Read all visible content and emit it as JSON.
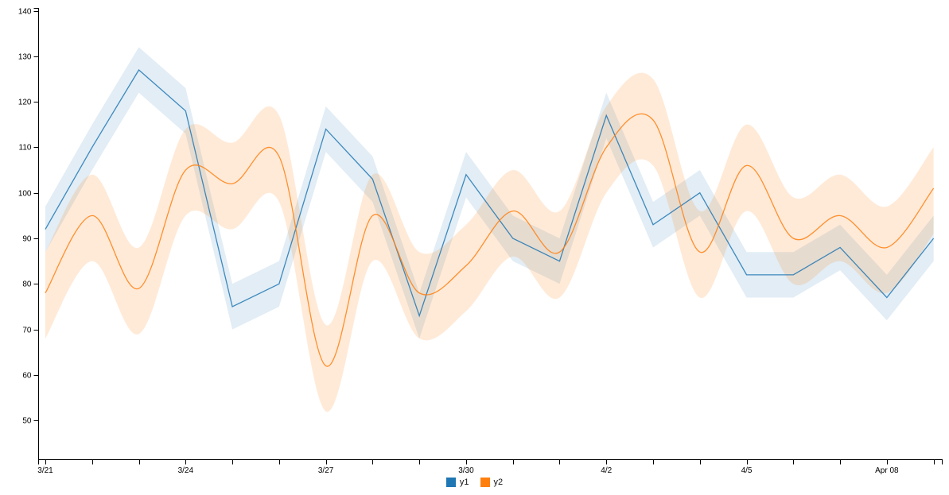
{
  "chart_data": {
    "type": "line",
    "title": "",
    "xlabel": "",
    "ylabel": "",
    "grid": false,
    "legend_position": "bottom-center",
    "x": [
      "3/21",
      "3/22",
      "3/23",
      "3/24",
      "3/25",
      "3/26",
      "3/27",
      "3/28",
      "3/29",
      "3/30",
      "3/31",
      "4/1",
      "4/2",
      "4/3",
      "4/4",
      "4/5",
      "4/6",
      "4/7",
      "4/8",
      "4/9"
    ],
    "x_axis": {
      "tick_every_point": true,
      "labeled_ticks": [
        {
          "index": 0,
          "label": "3/21"
        },
        {
          "index": 3,
          "label": "3/24"
        },
        {
          "index": 6,
          "label": "3/27"
        },
        {
          "index": 9,
          "label": "3/30"
        },
        {
          "index": 12,
          "label": "4/2"
        },
        {
          "index": 15,
          "label": "4/5"
        },
        {
          "index": 18,
          "label": "Apr 08"
        }
      ]
    },
    "y_axis": {
      "ticks": [
        50,
        60,
        70,
        80,
        90,
        100,
        110,
        120,
        130,
        140
      ],
      "tick_labels": [
        "50",
        "60",
        "70",
        "80",
        "90",
        "100",
        "110",
        "120",
        "130",
        "140"
      ]
    },
    "series": [
      {
        "name": "y1",
        "curve": "linear",
        "color": "#1f77b4",
        "band_color": "rgba(31,119,180,0.13)",
        "values": [
          92,
          110,
          127,
          118,
          75,
          80,
          114,
          103,
          73,
          104,
          90,
          85,
          117,
          93,
          100,
          82,
          82,
          88,
          77,
          90
        ],
        "band_lower": [
          87,
          105,
          122,
          113,
          70,
          75,
          109,
          98,
          68,
          99,
          85,
          80,
          112,
          88,
          95,
          77,
          77,
          83,
          72,
          85
        ],
        "band_upper": [
          97,
          115,
          132,
          123,
          80,
          85,
          119,
          108,
          78,
          109,
          95,
          90,
          122,
          98,
          105,
          87,
          87,
          93,
          82,
          95
        ]
      },
      {
        "name": "y2",
        "curve": "smooth",
        "color": "#ff7f0e",
        "band_color": "rgba(255,127,14,0.16)",
        "values": [
          78,
          95,
          79,
          105,
          102,
          108,
          62,
          95,
          78,
          84,
          96,
          87,
          110,
          116,
          87,
          106,
          90,
          95,
          88,
          101
        ],
        "band_lower": [
          68,
          85,
          69,
          95,
          92,
          98,
          52,
          85,
          68,
          74,
          86,
          77,
          100,
          106,
          77,
          96,
          80,
          85,
          78,
          91
        ],
        "band_upper": [
          87,
          104,
          88,
          114,
          111,
          117,
          71,
          104,
          87,
          93,
          105,
          96,
          119,
          125,
          96,
          115,
          99,
          104,
          97,
          110
        ]
      }
    ]
  },
  "legend": {
    "items": [
      {
        "label": "y1",
        "color": "#1f77b4"
      },
      {
        "label": "y2",
        "color": "#ff7f0e"
      }
    ]
  }
}
